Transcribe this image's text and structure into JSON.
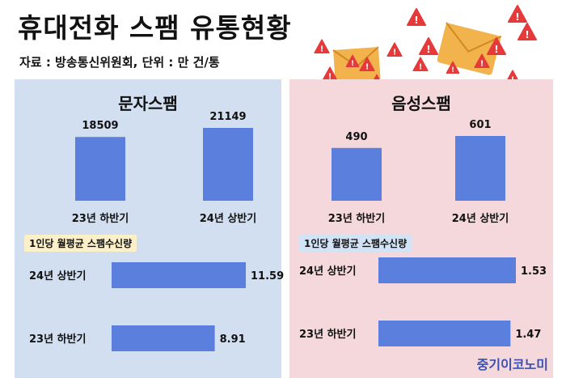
{
  "title": "휴대전화 스팸 유통현황",
  "source": "자료 : 방송통신위원회, 단위 : 만 건/통",
  "brand": "중기이코노미",
  "colors": {
    "bar": "#5b7fdc",
    "left_panel": "#d2dff1",
    "right_panel": "#f5d8db",
    "warning": "#e63a3a",
    "envelope": "#f2b24c"
  },
  "icons": [
    "warning-icon",
    "envelope-icon"
  ],
  "chart_data": [
    {
      "type": "bar",
      "panel": "left",
      "title": "문자스팸",
      "categories": [
        "23년 하반기",
        "24년 상반기"
      ],
      "values": [
        18509,
        21149
      ],
      "value_labels": [
        "18509",
        "21149"
      ]
    },
    {
      "type": "bar",
      "orientation": "horizontal",
      "panel": "left",
      "title": "1인당 월평균 스팸수신량",
      "categories": [
        "24년 상반기",
        "23년 하반기"
      ],
      "values": [
        11.59,
        8.91
      ],
      "value_labels": [
        "11.59",
        "8.91"
      ]
    },
    {
      "type": "bar",
      "panel": "right",
      "title": "음성스팸",
      "categories": [
        "23년 하반기",
        "24년 상반기"
      ],
      "values": [
        490,
        601
      ],
      "value_labels": [
        "490",
        "601"
      ]
    },
    {
      "type": "bar",
      "orientation": "horizontal",
      "panel": "right",
      "title": "1인당 월평균 스팸수신량",
      "categories": [
        "24년 상반기",
        "23년 하반기"
      ],
      "values": [
        1.53,
        1.47
      ],
      "value_labels": [
        "1.53",
        "1.47"
      ]
    }
  ]
}
